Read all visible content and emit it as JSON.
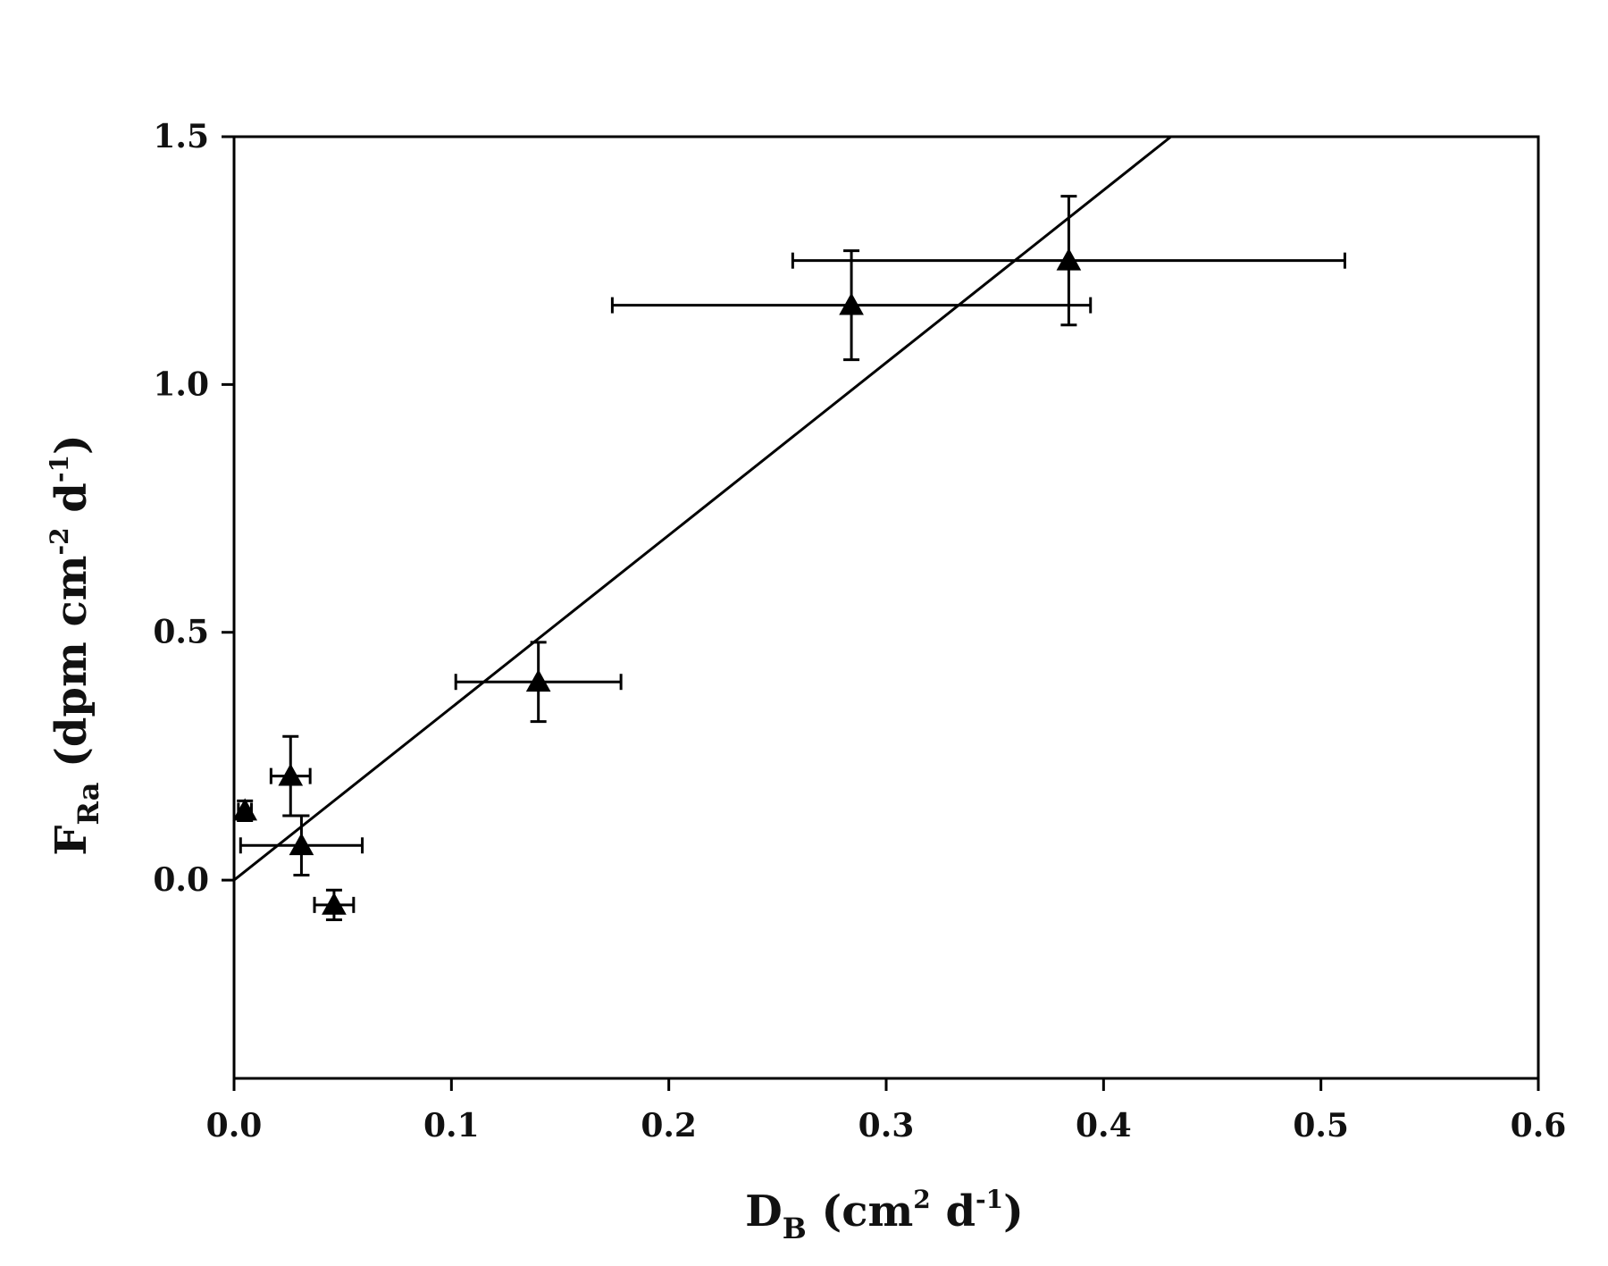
{
  "chart_data": {
    "type": "scatter",
    "title": "",
    "xlabel": {
      "main": "D",
      "sub": "B",
      "unit_open": " (cm",
      "unit_sup1": "2",
      "unit_mid": " d",
      "unit_sup2": "-1",
      "unit_close": ")"
    },
    "ylabel": {
      "main": "F",
      "sub": "Ra",
      "unit_open": "  (dpm cm",
      "unit_sup1": "-2",
      "unit_mid": " d",
      "unit_sup2": "-1",
      "unit_close": ")"
    },
    "xlim": [
      0,
      0.6
    ],
    "ylim": [
      -0.4,
      1.5
    ],
    "x_ticks": [
      0.0,
      0.1,
      0.2,
      0.3,
      0.4,
      0.5,
      0.6
    ],
    "x_tick_labels": [
      "0.0",
      "0.1",
      "0.2",
      "0.3",
      "0.4",
      "0.5",
      "0.6"
    ],
    "y_ticks": [
      0.0,
      0.5,
      1.0,
      1.5
    ],
    "y_tick_labels": [
      "0.0",
      "0.5",
      "1.0",
      "1.5"
    ],
    "grid": false,
    "marker": "filled-triangle",
    "color": "#000000",
    "points": [
      {
        "x": 0.005,
        "y": 0.14,
        "x_err": [
          0.003,
          0.003
        ],
        "y_err": [
          0.02,
          0.02
        ]
      },
      {
        "x": 0.026,
        "y": 0.21,
        "x_err": [
          0.009,
          0.009
        ],
        "y_err": [
          0.08,
          0.08
        ]
      },
      {
        "x": 0.031,
        "y": 0.07,
        "x_err": [
          0.028,
          0.028
        ],
        "y_err": [
          0.06,
          0.06
        ]
      },
      {
        "x": 0.046,
        "y": -0.05,
        "x_err": [
          0.009,
          0.009
        ],
        "y_err": [
          0.03,
          0.03
        ]
      },
      {
        "x": 0.14,
        "y": 0.4,
        "x_err": [
          0.038,
          0.038
        ],
        "y_err": [
          0.08,
          0.08
        ]
      },
      {
        "x": 0.284,
        "y": 1.16,
        "x_err": [
          0.11,
          0.11
        ],
        "y_err": [
          0.11,
          0.11
        ]
      },
      {
        "x": 0.384,
        "y": 1.25,
        "x_err": [
          0.127,
          0.127
        ],
        "y_err": [
          0.13,
          0.13
        ]
      }
    ],
    "fit_line": {
      "x": [
        0.0,
        0.431
      ],
      "y": [
        0.0,
        1.5
      ]
    }
  }
}
